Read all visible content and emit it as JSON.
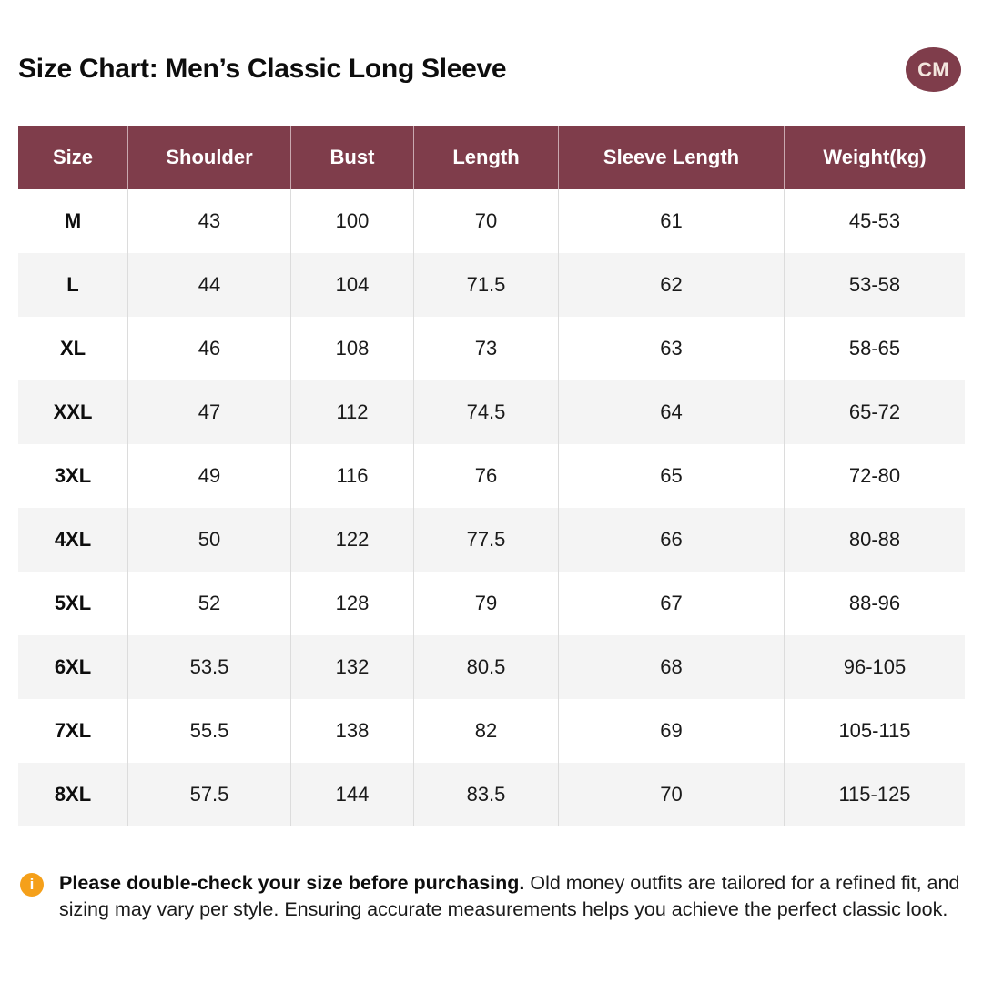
{
  "header": {
    "title": "Size Chart: Men’s Classic Long Sleeve",
    "unit_badge": "CM"
  },
  "colors": {
    "accent": "#7f3d4b",
    "alt_row": "#f4f4f4",
    "info_icon": "#f5a01a"
  },
  "table": {
    "columns": [
      "Size",
      "Shoulder",
      "Bust",
      "Length",
      "Sleeve Length",
      "Weight(kg)"
    ],
    "rows": [
      [
        "M",
        "43",
        "100",
        "70",
        "61",
        "45-53"
      ],
      [
        "L",
        "44",
        "104",
        "71.5",
        "62",
        "53-58"
      ],
      [
        "XL",
        "46",
        "108",
        "73",
        "63",
        "58-65"
      ],
      [
        "XXL",
        "47",
        "112",
        "74.5",
        "64",
        "65-72"
      ],
      [
        "3XL",
        "49",
        "116",
        "76",
        "65",
        "72-80"
      ],
      [
        "4XL",
        "50",
        "122",
        "77.5",
        "66",
        "80-88"
      ],
      [
        "5XL",
        "52",
        "128",
        "79",
        "67",
        "88-96"
      ],
      [
        "6XL",
        "53.5",
        "132",
        "80.5",
        "68",
        "96-105"
      ],
      [
        "7XL",
        "55.5",
        "138",
        "82",
        "69",
        "105-115"
      ],
      [
        "8XL",
        "57.5",
        "144",
        "83.5",
        "70",
        "115-125"
      ]
    ]
  },
  "note": {
    "icon": "info-icon",
    "icon_glyph": "i",
    "bold": "Please double-check your size before purchasing.",
    "text": " Old money outfits are tailored for a refined fit, and sizing may vary per style. Ensuring accurate measurements helps you achieve the perfect classic look."
  }
}
